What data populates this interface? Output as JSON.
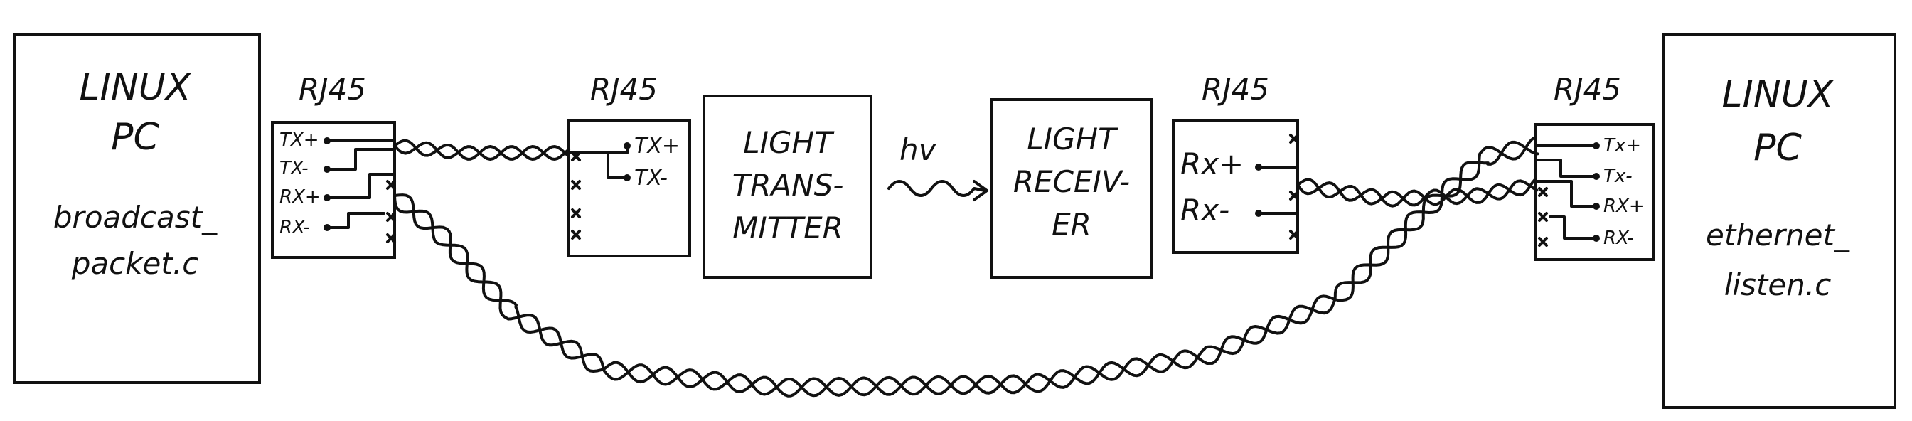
{
  "left_pc": {
    "line1": "LINUX",
    "line2": "PC",
    "file_line1": "broadcast_",
    "file_line2": "packet.c"
  },
  "right_pc": {
    "line1": "LINUX",
    "line2": "PC",
    "file_line1": "ethernet_",
    "file_line2": "listen.c"
  },
  "jack_label": "RJ45",
  "left_jack_pins": [
    "TX+",
    "TX-",
    "RX+",
    "RX-"
  ],
  "transmitter_jack_pins": [
    "TX+",
    "TX-"
  ],
  "transmitter": {
    "line1": "LIGHT",
    "line2": "TRANS-",
    "line3": "MITTER"
  },
  "signal_label": "hv",
  "receiver": {
    "line1": "LIGHT",
    "line2": "RECEIV-",
    "line3": "ER"
  },
  "receiver_jack_pins": [
    "Rx+",
    "Rx-"
  ],
  "right_jack_pins": [
    "Tx+",
    "Tx-",
    "RX+",
    "RX-"
  ]
}
